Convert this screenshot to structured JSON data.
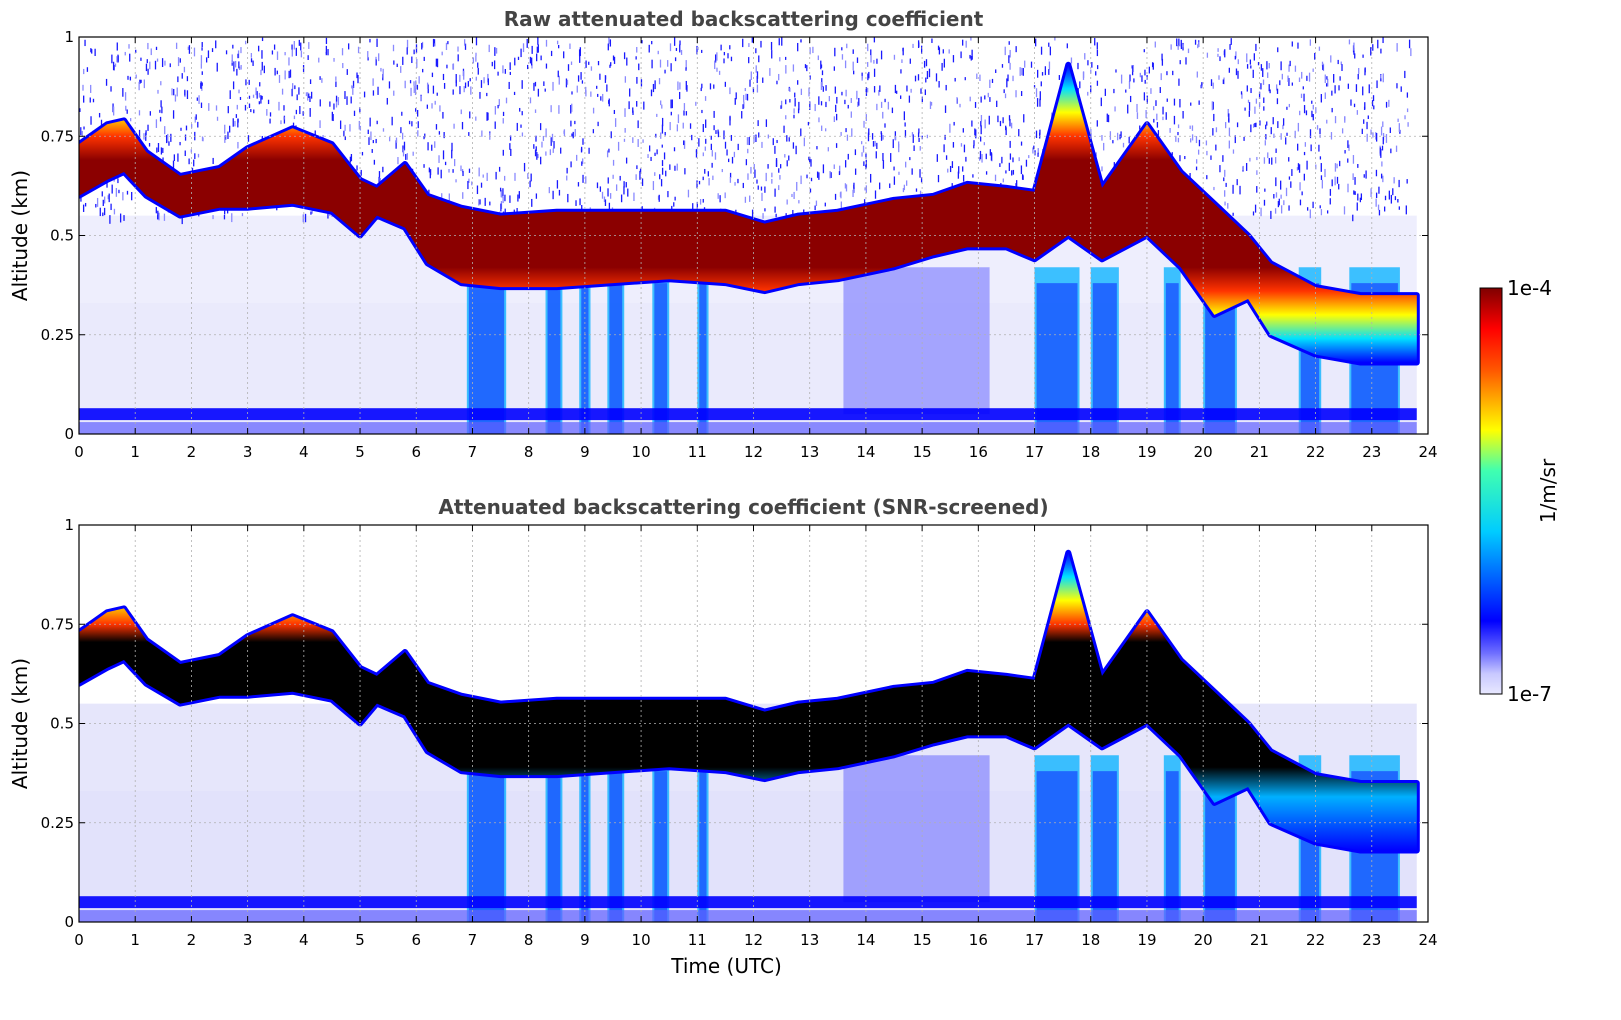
{
  "chart_data": [
    {
      "type": "heatmap",
      "title": "Raw attenuated backscattering coefficient",
      "ylabel": "Altitude (km)",
      "xlabel": "",
      "xlim": [
        0,
        24
      ],
      "ylim": [
        0,
        1
      ],
      "x_ticks": [
        "0",
        "1",
        "2",
        "3",
        "4",
        "5",
        "6",
        "7",
        "8",
        "9",
        "10",
        "11",
        "12",
        "13",
        "14",
        "15",
        "16",
        "17",
        "18",
        "19",
        "20",
        "21",
        "22",
        "23",
        "24"
      ],
      "y_ticks": [
        "0",
        "0.25",
        "0.5",
        "0.75",
        "1"
      ],
      "grid": true,
      "screened": false
    },
    {
      "type": "heatmap",
      "title": "Attenuated backscattering coefficient (SNR-screened)",
      "ylabel": "Altitude (km)",
      "xlabel": "Time (UTC)",
      "xlim": [
        0,
        24
      ],
      "ylim": [
        0,
        1
      ],
      "x_ticks": [
        "0",
        "1",
        "2",
        "3",
        "4",
        "5",
        "6",
        "7",
        "8",
        "9",
        "10",
        "11",
        "12",
        "13",
        "14",
        "15",
        "16",
        "17",
        "18",
        "19",
        "20",
        "21",
        "22",
        "23",
        "24"
      ],
      "y_ticks": [
        "0",
        "0.25",
        "0.5",
        "0.75",
        "1"
      ],
      "grid": true,
      "screened": true
    }
  ],
  "colorbar": {
    "label": "1/m/sr",
    "max_label": "1e-4",
    "min_label": "1e-7",
    "colormap": "jet",
    "saturated_color": "#000000"
  },
  "cloud_layer": {
    "time_hours": [
      0,
      0.5,
      0.8,
      1.2,
      1.8,
      2.5,
      3.0,
      3.8,
      4.5,
      5.0,
      5.3,
      5.8,
      6.2,
      6.8,
      7.5,
      8.5,
      9.5,
      10.5,
      11.5,
      12.2,
      12.8,
      13.5,
      14.5,
      15.2,
      15.8,
      16.5,
      17.0,
      17.6,
      18.2,
      19.0,
      19.6,
      20.2,
      20.8,
      21.2,
      22.0,
      22.8,
      23.3,
      23.8
    ],
    "base_km": [
      0.6,
      0.64,
      0.66,
      0.6,
      0.55,
      0.57,
      0.57,
      0.58,
      0.56,
      0.5,
      0.55,
      0.52,
      0.43,
      0.38,
      0.37,
      0.37,
      0.38,
      0.39,
      0.38,
      0.36,
      0.38,
      0.39,
      0.42,
      0.45,
      0.47,
      0.47,
      0.44,
      0.5,
      0.44,
      0.5,
      0.42,
      0.3,
      0.34,
      0.25,
      0.2,
      0.18,
      0.18,
      0.18
    ],
    "top_km": [
      0.73,
      0.78,
      0.79,
      0.71,
      0.65,
      0.67,
      0.72,
      0.77,
      0.73,
      0.64,
      0.62,
      0.68,
      0.6,
      0.57,
      0.55,
      0.56,
      0.56,
      0.56,
      0.56,
      0.53,
      0.55,
      0.56,
      0.59,
      0.6,
      0.63,
      0.62,
      0.61,
      0.93,
      0.62,
      0.78,
      0.66,
      0.58,
      0.5,
      0.43,
      0.37,
      0.35,
      0.35,
      0.35
    ]
  }
}
